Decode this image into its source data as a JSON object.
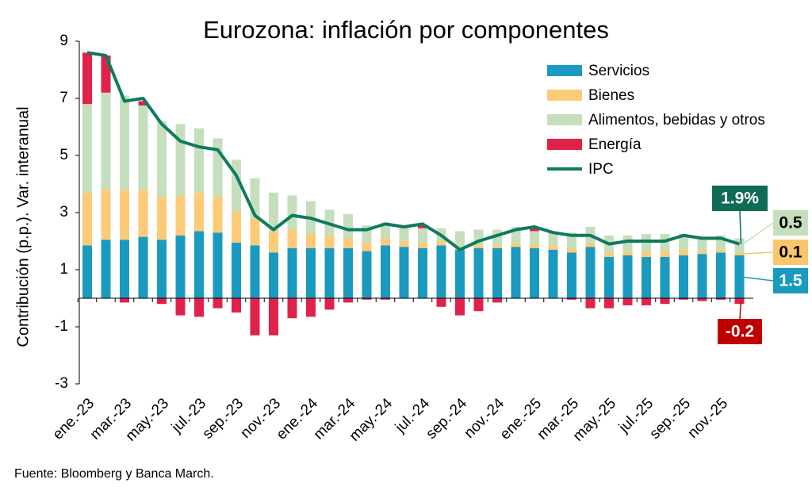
{
  "chart_data": {
    "type": "stacked_bar_line",
    "title": "Eurozona: inflación por componentes",
    "y_label": "Contribución (p.p.). Var. interanual",
    "source": "Fuente: Bloomberg y Banca March.",
    "categories": [
      "ene.-23",
      null,
      "mar.-23",
      null,
      "may.-23",
      null,
      "jul.-23",
      null,
      "sep.-23",
      null,
      "nov.-23",
      null,
      "ene.-24",
      null,
      "mar.-24",
      null,
      "may.-24",
      null,
      "jul.-24",
      null,
      "sep.-24",
      null,
      "nov.-24",
      null,
      "ene.-25",
      null,
      "mar.-25",
      null,
      "may.-25",
      null,
      "jul.-25",
      null,
      "sep.-25",
      null,
      "nov.-25",
      null
    ],
    "ylim": [
      -3,
      9
    ],
    "yticks": [
      -3,
      -1,
      1,
      3,
      5,
      7,
      9
    ],
    "grid": false,
    "legend": "upper right",
    "series": [
      {
        "name": "Servicios",
        "color": "#1b9ac0",
        "kind": "bar",
        "end_label": "1.5",
        "end_label_color": "#1b9ac0",
        "values": [
          1.85,
          2.05,
          2.05,
          2.15,
          2.05,
          2.2,
          2.35,
          2.3,
          1.95,
          1.85,
          1.6,
          1.75,
          1.75,
          1.75,
          1.75,
          1.65,
          1.85,
          1.8,
          1.75,
          1.85,
          1.7,
          1.75,
          1.75,
          1.8,
          1.75,
          1.7,
          1.6,
          1.8,
          1.45,
          1.5,
          1.45,
          1.45,
          1.5,
          1.55,
          1.6,
          1.5
        ]
      },
      {
        "name": "Bienes",
        "color": "#fbcb78",
        "kind": "bar",
        "end_label": "0.1",
        "end_label_color": "#f9c66c",
        "values": [
          1.85,
          1.75,
          1.75,
          1.65,
          1.5,
          1.4,
          1.35,
          1.25,
          1.1,
          0.95,
          0.75,
          0.65,
          0.5,
          0.45,
          0.35,
          0.3,
          0.25,
          0.2,
          0.2,
          0.15,
          0.1,
          0.1,
          0.1,
          0.15,
          0.15,
          0.15,
          0.15,
          0.15,
          0.15,
          0.15,
          0.2,
          0.2,
          0.2,
          0.1,
          0.1,
          0.1
        ]
      },
      {
        "name": "Alimentos, bebidas y otros",
        "color": "#c5dfbd",
        "kind": "bar",
        "end_label": "0.5",
        "end_label_color": "#c5dfbd",
        "values": [
          3.1,
          3.4,
          3.3,
          2.95,
          2.65,
          2.5,
          2.25,
          2.05,
          1.8,
          1.4,
          1.35,
          1.2,
          1.15,
          0.9,
          0.85,
          0.6,
          0.55,
          0.5,
          0.5,
          0.45,
          0.55,
          0.55,
          0.55,
          0.55,
          0.45,
          0.5,
          0.55,
          0.55,
          0.6,
          0.55,
          0.6,
          0.6,
          0.55,
          0.5,
          0.5,
          0.5
        ]
      },
      {
        "name": "Energía",
        "color": "#e0224a",
        "kind": "bar",
        "end_label": "-0.2",
        "end_label_color": "#c00000",
        "values": [
          1.8,
          1.3,
          -0.15,
          0.15,
          -0.2,
          -0.6,
          -0.65,
          -0.35,
          -0.5,
          -1.3,
          -1.3,
          -0.7,
          -0.65,
          -0.4,
          -0.15,
          -0.05,
          -0.05,
          0,
          0.1,
          -0.3,
          -0.6,
          -0.45,
          -0.15,
          0,
          0.15,
          0,
          -0.05,
          -0.35,
          -0.35,
          -0.25,
          -0.25,
          -0.2,
          -0.05,
          -0.1,
          -0.05,
          -0.2
        ]
      },
      {
        "name": "IPC",
        "color": "#0f7a60",
        "kind": "line",
        "end_label": "1.9%",
        "end_label_color": "#0f6b55",
        "values": [
          8.6,
          8.5,
          6.9,
          7.0,
          6.1,
          5.5,
          5.3,
          5.2,
          4.3,
          2.9,
          2.4,
          2.9,
          2.8,
          2.6,
          2.4,
          2.4,
          2.6,
          2.5,
          2.6,
          2.2,
          1.7,
          2.0,
          2.2,
          2.4,
          2.5,
          2.3,
          2.2,
          2.2,
          1.9,
          2.0,
          2.0,
          2.0,
          2.2,
          2.1,
          2.1,
          1.9
        ]
      }
    ]
  }
}
